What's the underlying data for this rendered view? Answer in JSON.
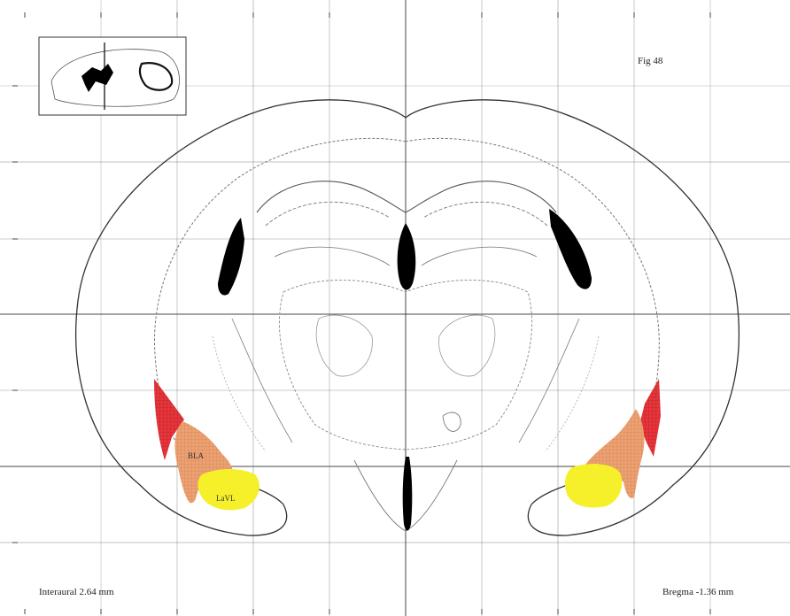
{
  "atlas": {
    "figure_id": "Fig 48",
    "interaural": "Interaural 2.64 mm",
    "bregma": "Bregma -1.36 mm"
  },
  "regions": {
    "red_label": "",
    "orange_label": "BLA",
    "yellow_label": "LaVL",
    "red_color": "#e8343a",
    "orange_color": "#eea070",
    "yellow_color": "#f5f02a"
  },
  "grid_color": "#555555",
  "ventricle_color": "#000000"
}
